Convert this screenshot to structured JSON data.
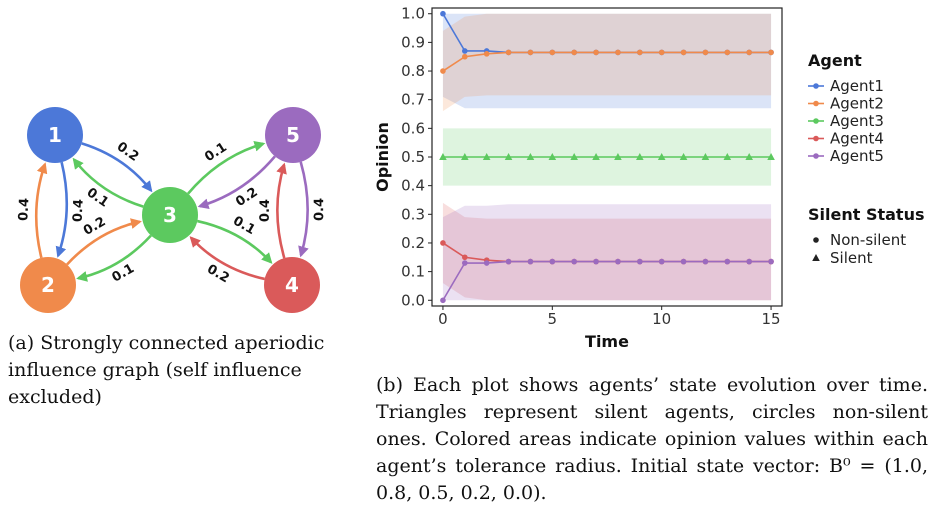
{
  "graph": {
    "colors": {
      "1": "#4c78d8",
      "2": "#f08a4b",
      "3": "#5cc95f",
      "4": "#da5a5a",
      "5": "#9b6bbf"
    },
    "nodes": [
      {
        "id": "1",
        "label": "1"
      },
      {
        "id": "2",
        "label": "2"
      },
      {
        "id": "3",
        "label": "3"
      },
      {
        "id": "4",
        "label": "4"
      },
      {
        "id": "5",
        "label": "5"
      }
    ],
    "edges": [
      {
        "from": "1",
        "to": "2",
        "weight": "0.4"
      },
      {
        "from": "2",
        "to": "1",
        "weight": "0.4"
      },
      {
        "from": "1",
        "to": "3",
        "weight": "0.2"
      },
      {
        "from": "3",
        "to": "1",
        "weight": "0.1"
      },
      {
        "from": "2",
        "to": "3",
        "weight": "0.2"
      },
      {
        "from": "3",
        "to": "2",
        "weight": "0.1"
      },
      {
        "from": "3",
        "to": "5",
        "weight": "0.1"
      },
      {
        "from": "5",
        "to": "3",
        "weight": "0.2"
      },
      {
        "from": "3",
        "to": "4",
        "weight": "0.1"
      },
      {
        "from": "4",
        "to": "3",
        "weight": "0.2"
      },
      {
        "from": "5",
        "to": "4",
        "weight": "0.4"
      },
      {
        "from": "4",
        "to": "5",
        "weight": "0.4"
      }
    ]
  },
  "chart_data": {
    "type": "line",
    "xlabel": "Time",
    "ylabel": "Opinion",
    "xlim": [
      -0.5,
      15.5
    ],
    "ylim": [
      -0.02,
      1.02
    ],
    "xticks": [
      "0",
      "5",
      "10",
      "15"
    ],
    "yticks": [
      "0.0",
      "0.1",
      "0.2",
      "0.3",
      "0.4",
      "0.5",
      "0.6",
      "0.7",
      "0.8",
      "0.9",
      "1.0"
    ],
    "x": [
      0,
      1,
      2,
      3,
      4,
      5,
      6,
      7,
      8,
      9,
      10,
      11,
      12,
      13,
      14,
      15
    ],
    "legend": {
      "agent_title": "Agent",
      "status_title": "Silent Status",
      "status_items": [
        {
          "marker": "circle",
          "label": "Non-silent"
        },
        {
          "marker": "triangle",
          "label": "Silent"
        }
      ]
    },
    "series": [
      {
        "name": "Agent1",
        "color": "#4c78d8",
        "marker": "circle",
        "values": [
          1.0,
          0.87,
          0.87,
          0.865,
          0.865,
          0.865,
          0.865,
          0.865,
          0.865,
          0.865,
          0.865,
          0.865,
          0.865,
          0.865,
          0.865,
          0.865
        ],
        "band_lower": [
          0.71,
          0.67,
          0.67,
          0.67,
          0.67,
          0.67,
          0.67,
          0.67,
          0.67,
          0.67,
          0.67,
          0.67,
          0.67,
          0.67,
          0.67,
          0.67
        ],
        "band_upper": [
          1.0,
          1.0,
          1.0,
          1.0,
          1.0,
          1.0,
          1.0,
          1.0,
          1.0,
          1.0,
          1.0,
          1.0,
          1.0,
          1.0,
          1.0,
          1.0
        ]
      },
      {
        "name": "Agent2",
        "color": "#f08a4b",
        "marker": "circle",
        "values": [
          0.8,
          0.85,
          0.86,
          0.865,
          0.865,
          0.865,
          0.865,
          0.865,
          0.865,
          0.865,
          0.865,
          0.865,
          0.865,
          0.865,
          0.865,
          0.865
        ],
        "band_lower": [
          0.66,
          0.71,
          0.715,
          0.715,
          0.715,
          0.715,
          0.715,
          0.715,
          0.715,
          0.715,
          0.715,
          0.715,
          0.715,
          0.715,
          0.715,
          0.715
        ],
        "band_upper": [
          0.94,
          0.99,
          1.0,
          1.0,
          1.0,
          1.0,
          1.0,
          1.0,
          1.0,
          1.0,
          1.0,
          1.0,
          1.0,
          1.0,
          1.0,
          1.0
        ]
      },
      {
        "name": "Agent3",
        "color": "#5cc95f",
        "marker": "triangle",
        "values": [
          0.5,
          0.5,
          0.5,
          0.5,
          0.5,
          0.5,
          0.5,
          0.5,
          0.5,
          0.5,
          0.5,
          0.5,
          0.5,
          0.5,
          0.5,
          0.5
        ],
        "band_lower": [
          0.4,
          0.4,
          0.4,
          0.4,
          0.4,
          0.4,
          0.4,
          0.4,
          0.4,
          0.4,
          0.4,
          0.4,
          0.4,
          0.4,
          0.4,
          0.4
        ],
        "band_upper": [
          0.6,
          0.6,
          0.6,
          0.6,
          0.6,
          0.6,
          0.6,
          0.6,
          0.6,
          0.6,
          0.6,
          0.6,
          0.6,
          0.6,
          0.6,
          0.6
        ]
      },
      {
        "name": "Agent4",
        "color": "#da5a5a",
        "marker": "circle",
        "values": [
          0.2,
          0.15,
          0.14,
          0.135,
          0.135,
          0.135,
          0.135,
          0.135,
          0.135,
          0.135,
          0.135,
          0.135,
          0.135,
          0.135,
          0.135,
          0.135
        ],
        "band_lower": [
          0.06,
          0.01,
          0.0,
          0.0,
          0.0,
          0.0,
          0.0,
          0.0,
          0.0,
          0.0,
          0.0,
          0.0,
          0.0,
          0.0,
          0.0,
          0.0
        ],
        "band_upper": [
          0.34,
          0.29,
          0.285,
          0.285,
          0.285,
          0.285,
          0.285,
          0.285,
          0.285,
          0.285,
          0.285,
          0.285,
          0.285,
          0.285,
          0.285,
          0.285
        ]
      },
      {
        "name": "Agent5",
        "color": "#9b6bbf",
        "marker": "circle",
        "values": [
          0.0,
          0.13,
          0.13,
          0.135,
          0.135,
          0.135,
          0.135,
          0.135,
          0.135,
          0.135,
          0.135,
          0.135,
          0.135,
          0.135,
          0.135,
          0.135
        ],
        "band_lower": [
          0.0,
          0.0,
          0.0,
          0.0,
          0.0,
          0.0,
          0.0,
          0.0,
          0.0,
          0.0,
          0.0,
          0.0,
          0.0,
          0.0,
          0.0,
          0.0
        ],
        "band_upper": [
          0.29,
          0.33,
          0.33,
          0.335,
          0.335,
          0.335,
          0.335,
          0.335,
          0.335,
          0.335,
          0.335,
          0.335,
          0.335,
          0.335,
          0.335,
          0.335
        ]
      }
    ]
  },
  "captions": {
    "a": "(a) Strongly connected aperiodic influence graph (self influence excluded)",
    "b": "(b) Each plot shows agents’ state evolution over time. Triangles represent silent agents, circles non-silent ones. Colored areas indicate opinion values within each agent’s tolerance radius. Initial state vector: B⁰ = (1.0, 0.8, 0.5, 0.2, 0.0)."
  }
}
